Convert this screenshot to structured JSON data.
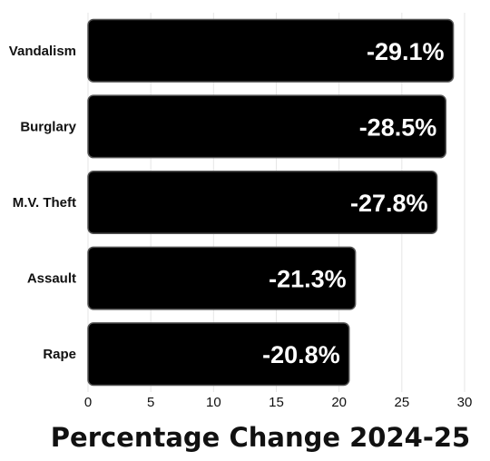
{
  "chart_data": {
    "type": "bar",
    "orientation": "horizontal",
    "categories": [
      "Vandalism",
      "Burglary",
      "M.V. Theft",
      "Assault",
      "Rape"
    ],
    "values": [
      29.1,
      28.5,
      27.8,
      21.3,
      20.8
    ],
    "data_labels": [
      "-29.1%",
      "-28.5%",
      "-27.8%",
      "-21.3%",
      "-20.8%"
    ],
    "xlabel": "Percentage Change 2024-25",
    "ylabel": "",
    "title": "",
    "xlim": [
      0,
      30
    ],
    "x_ticks": [
      0,
      5,
      10,
      15,
      20,
      25,
      30
    ],
    "grid": "vertical",
    "legend": "none",
    "colors": {
      "bar": "#000000",
      "bar_outline": "#555555",
      "grid": "#e6e6e6",
      "label_text": "#ffffff"
    }
  }
}
